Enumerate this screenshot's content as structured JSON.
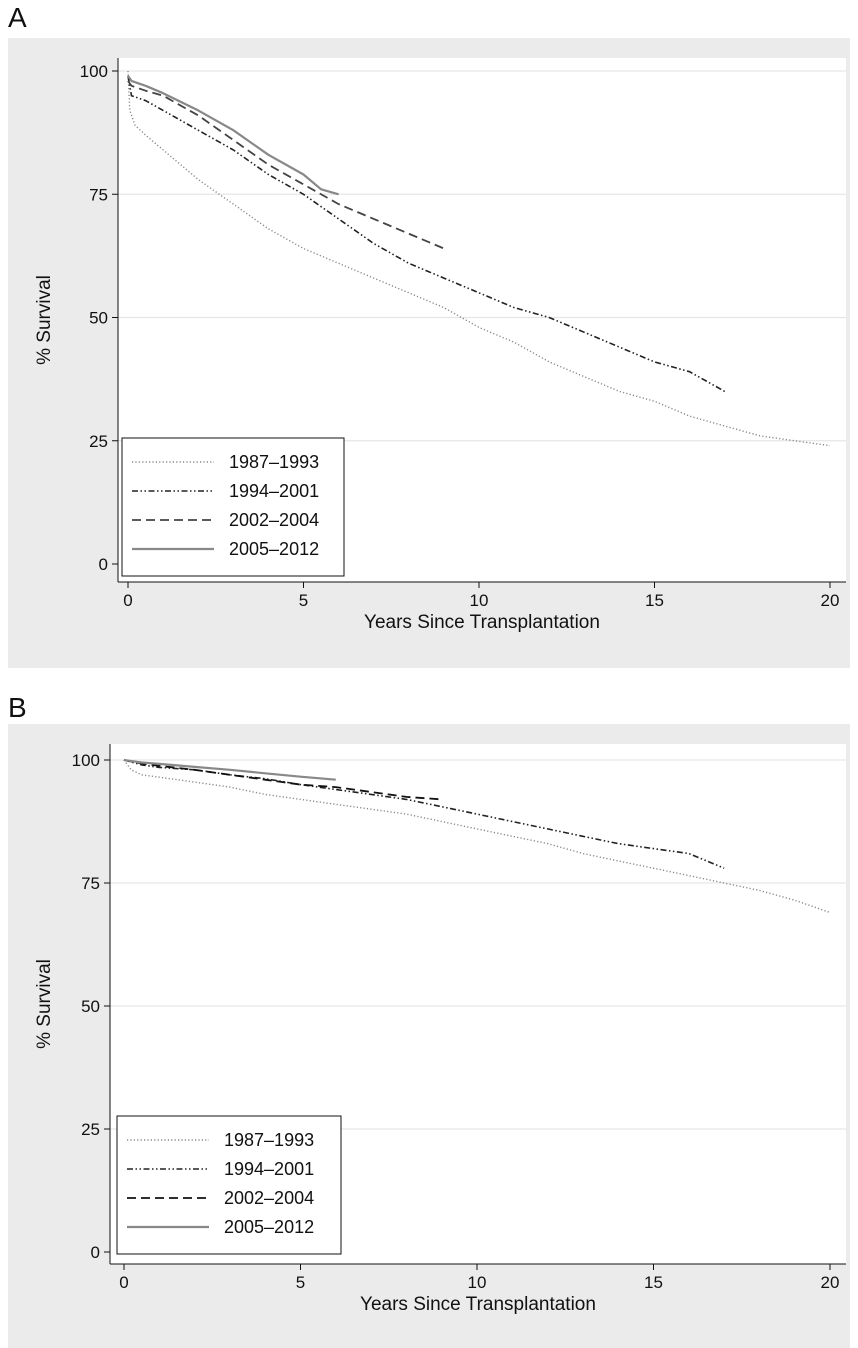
{
  "chart_data": [
    {
      "panel": "A",
      "type": "line",
      "xlabel": "Years Since Transplantation",
      "ylabel": "% Survival",
      "xlim": [
        0,
        20
      ],
      "ylim": [
        0,
        100
      ],
      "xticks": [
        "0",
        "5",
        "10",
        "15",
        "20"
      ],
      "yticks": [
        "0",
        "25",
        "50",
        "75",
        "100"
      ],
      "grid": "horizontal",
      "legend_position": "bottom-left",
      "series": [
        {
          "name": "1987–1993",
          "style": "dotted",
          "color": "#888888",
          "x": [
            0,
            0.05,
            0.2,
            0.5,
            1,
            2,
            3,
            4,
            5,
            6,
            7,
            8,
            9,
            10,
            11,
            12,
            13,
            14,
            15,
            16,
            17,
            18,
            19,
            20
          ],
          "y": [
            100,
            92,
            89,
            87,
            84,
            78,
            73,
            68,
            64,
            61,
            58,
            55,
            52,
            48,
            45,
            41,
            38,
            35,
            33,
            30,
            28,
            26,
            25,
            24
          ]
        },
        {
          "name": "1994–2001",
          "style": "dash-dot-dot",
          "color": "#222222",
          "x": [
            0,
            0.1,
            0.5,
            1,
            2,
            3,
            4,
            5,
            6,
            7,
            8,
            9,
            10,
            11,
            12,
            13,
            14,
            15,
            16,
            17
          ],
          "y": [
            99,
            95,
            94,
            92,
            88,
            84,
            79,
            75,
            70,
            65,
            61,
            58,
            55,
            52,
            50,
            47,
            44,
            41,
            39,
            35
          ]
        },
        {
          "name": "2002–2004",
          "style": "dashed",
          "color": "#444444",
          "x": [
            0,
            0.1,
            0.5,
            1,
            2,
            3,
            4,
            5,
            6,
            7,
            8,
            9
          ],
          "y": [
            98,
            97,
            96,
            95,
            91,
            86,
            81,
            77,
            73,
            70,
            67,
            64
          ]
        },
        {
          "name": "2005–2012",
          "style": "solid",
          "color": "#888888",
          "x": [
            0,
            0.1,
            0.5,
            1,
            2,
            3,
            4,
            5,
            5.5,
            6
          ],
          "y": [
            99,
            98,
            97,
            95.5,
            92,
            88,
            83,
            79,
            76,
            75
          ]
        }
      ]
    },
    {
      "panel": "B",
      "type": "line",
      "xlabel": "Years Since Transplantation",
      "ylabel": "% Survival",
      "xlim": [
        0,
        20
      ],
      "ylim": [
        0,
        100
      ],
      "xticks": [
        "0",
        "5",
        "10",
        "15",
        "20"
      ],
      "yticks": [
        "0",
        "25",
        "50",
        "75",
        "100"
      ],
      "grid": "horizontal",
      "legend_position": "bottom-left",
      "series": [
        {
          "name": "1987–1993",
          "style": "dotted",
          "color": "#888888",
          "x": [
            0,
            0.2,
            0.5,
            1,
            2,
            3,
            4,
            5,
            6,
            7,
            8,
            9,
            10,
            11,
            12,
            13,
            14,
            15,
            16,
            17,
            18,
            19,
            20
          ],
          "y": [
            100,
            98,
            97,
            96.5,
            95.5,
            94.5,
            93,
            92,
            91,
            90,
            89,
            87.5,
            86,
            84.5,
            83,
            81,
            79.5,
            78,
            76.5,
            75,
            73.5,
            71.5,
            69
          ]
        },
        {
          "name": "1994–2001",
          "style": "dash-dot-dot",
          "color": "#222222",
          "x": [
            0,
            0.5,
            1,
            2,
            3,
            4,
            5,
            6,
            7,
            8,
            9,
            10,
            11,
            12,
            13,
            14,
            15,
            16,
            17
          ],
          "y": [
            100,
            99,
            98.5,
            98,
            97,
            96.2,
            95,
            94,
            93,
            92,
            90.5,
            89,
            87.5,
            86,
            84.5,
            83,
            82,
            81,
            78
          ]
        },
        {
          "name": "2002–2004",
          "style": "dashed",
          "color": "#111111",
          "x": [
            0,
            0.5,
            1,
            2,
            3,
            4,
            5,
            6,
            7,
            8,
            9
          ],
          "y": [
            100,
            99.3,
            98.8,
            98,
            97,
            96,
            95,
            94.5,
            93.5,
            92.5,
            92
          ]
        },
        {
          "name": "2005–2012",
          "style": "solid",
          "color": "#888888",
          "x": [
            0,
            0.5,
            1,
            2,
            3,
            4,
            5,
            6
          ],
          "y": [
            100,
            99.5,
            99.2,
            98.6,
            98,
            97.3,
            96.6,
            96
          ]
        }
      ]
    }
  ]
}
